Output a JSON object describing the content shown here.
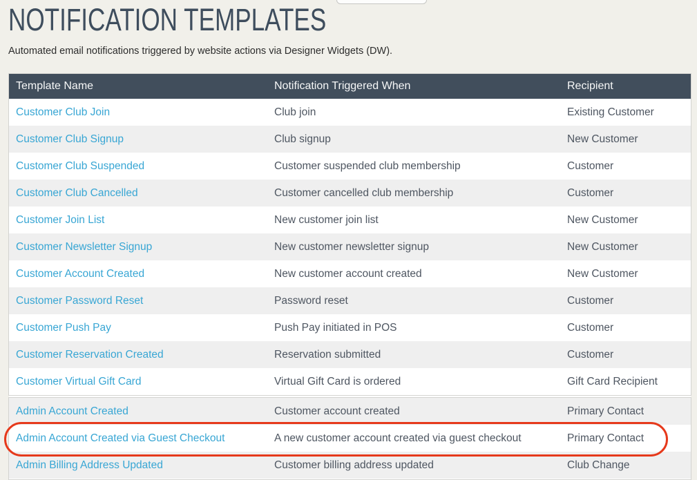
{
  "page": {
    "title": "NOTIFICATION TEMPLATES",
    "subtitle": "Automated email notifications triggered by website actions via Designer Widgets (DW)."
  },
  "top_button": {
    "label": "",
    "note": "partially visible control cut off at top of viewport"
  },
  "table": {
    "columns": [
      "Template Name",
      "Notification Triggered When",
      "Recipient"
    ],
    "sections": [
      {
        "name": "customer-templates",
        "rows": [
          {
            "name": "Customer Club Join",
            "trigger": "Club join",
            "recipient": "Existing Customer"
          },
          {
            "name": "Customer Club Signup",
            "trigger": "Club signup",
            "recipient": "New Customer"
          },
          {
            "name": "Customer Club Suspended",
            "trigger": "Customer suspended club membership",
            "recipient": "Customer"
          },
          {
            "name": "Customer Club Cancelled",
            "trigger": "Customer cancelled club membership",
            "recipient": "Customer"
          },
          {
            "name": "Customer Join List",
            "trigger": "New customer join list",
            "recipient": "New Customer"
          },
          {
            "name": "Customer Newsletter Signup",
            "trigger": "New customer newsletter signup",
            "recipient": "New Customer"
          },
          {
            "name": "Customer Account Created",
            "trigger": "New customer account created",
            "recipient": "New Customer"
          },
          {
            "name": "Customer Password Reset",
            "trigger": "Password reset",
            "recipient": "Customer"
          },
          {
            "name": "Customer Push Pay",
            "trigger": "Push Pay initiated in POS",
            "recipient": "Customer"
          },
          {
            "name": "Customer Reservation Created",
            "trigger": "Reservation submitted",
            "recipient": "Customer"
          },
          {
            "name": "Customer Virtual Gift Card",
            "trigger": "Virtual Gift Card is ordered",
            "recipient": "Gift Card Recipient"
          }
        ]
      },
      {
        "name": "admin-templates",
        "rows": [
          {
            "name": "Admin Account Created",
            "trigger": "Customer account created",
            "recipient": "Primary Contact"
          },
          {
            "name": "Admin Account Created via Guest Checkout",
            "trigger": "A new customer account created via guest checkout",
            "recipient": "Primary Contact"
          },
          {
            "name": "Admin Billing Address Updated",
            "trigger": "Customer billing address updated",
            "recipient": "Club Change"
          }
        ]
      }
    ]
  },
  "annotation": {
    "type": "oval-highlight",
    "highlighted_row": "Admin Account Created via Guest Checkout",
    "color": "#e6391b"
  },
  "colors": {
    "page_bg": "#f1f0ea",
    "title": "#3e4d5d",
    "header_bg": "#414e5c",
    "header_text": "#f7f8f8",
    "link": "#38a6d4",
    "cell_text": "#4e5661",
    "row_alt": "#efefef",
    "highlight": "#e6391b"
  }
}
